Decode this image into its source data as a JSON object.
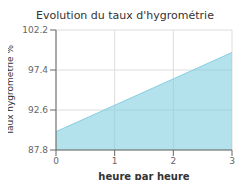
{
  "chart_data": {
    "type": "area",
    "title": "Evolution du taux d'hygrométrie",
    "xlabel": "heure par heure",
    "ylabel": "Taux hygrométrie %",
    "x": [
      0,
      3
    ],
    "values": [
      90.0,
      99.5
    ],
    "color": "#82cfe0",
    "xlim": [
      0,
      3
    ],
    "xticks": [
      0,
      1,
      2,
      3
    ],
    "ylim": [
      87.8,
      102.2
    ],
    "yticks": [
      87.8,
      92.6,
      97.4,
      102.2
    ],
    "grid": true
  }
}
